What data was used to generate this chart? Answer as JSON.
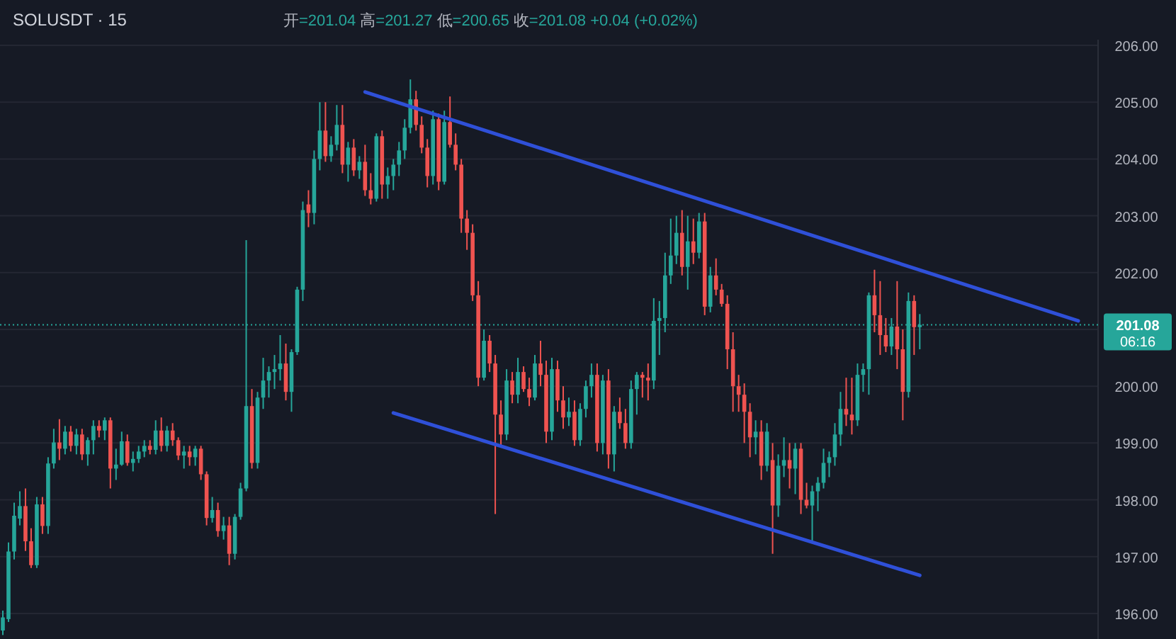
{
  "chart_data": {
    "type": "candlestick",
    "title": "SOLUSDT · 15",
    "subtitle": "开=201.04 高=201.27 低=200.65 收=201.08 +0.04 (+0.02%)",
    "categories": [
      null,
      null,
      null,
      null,
      null,
      null,
      null,
      null,
      null,
      null,
      null,
      null,
      null,
      null,
      null,
      null,
      null,
      null,
      null,
      null,
      null,
      null,
      null,
      null,
      null,
      null,
      null,
      null,
      null,
      null,
      null,
      null,
      null,
      null,
      null,
      null,
      null,
      null,
      null,
      null,
      null,
      null,
      null,
      null,
      null,
      null,
      null,
      null,
      null,
      null,
      null,
      null,
      null,
      null,
      null,
      null,
      null,
      null,
      null,
      null,
      null,
      null,
      null,
      null,
      null,
      null,
      null,
      null,
      null,
      null,
      null,
      null,
      null,
      null,
      null,
      null,
      null,
      null,
      null,
      null,
      null,
      null,
      null,
      null,
      null,
      null,
      null,
      null,
      null,
      null,
      null,
      null,
      null,
      null,
      null,
      null,
      null,
      null,
      null,
      null,
      null,
      null,
      null,
      null,
      null,
      null,
      null,
      null,
      null,
      null,
      null,
      null,
      null,
      null,
      null,
      null,
      null,
      null,
      null,
      null,
      null,
      null,
      null,
      null,
      null,
      null,
      null,
      null,
      null,
      null,
      null,
      null,
      null,
      null,
      null,
      null,
      null,
      null,
      null,
      null,
      null,
      null,
      null,
      null,
      null,
      null,
      null,
      null,
      null,
      null,
      null,
      null,
      null,
      null,
      null,
      null,
      null,
      null,
      null,
      null,
      null,
      null,
      null,
      null,
      null,
      null,
      null,
      null,
      null,
      null,
      null,
      null,
      null,
      null,
      null,
      null,
      null,
      null,
      null,
      null,
      null,
      null,
      null,
      null,
      null,
      null,
      null,
      null,
      null,
      null,
      null,
      null,
      null,
      null
    ],
    "ohlc": [
      [
        195.7,
        196.05,
        195.62,
        195.93
      ],
      [
        195.9,
        197.25,
        195.85,
        197.09
      ],
      [
        197.09,
        197.95,
        196.95,
        197.72
      ],
      [
        197.67,
        198.15,
        197.55,
        197.89
      ],
      [
        197.89,
        198.2,
        197.1,
        197.27
      ],
      [
        197.27,
        197.5,
        196.8,
        196.85
      ],
      [
        196.85,
        198.05,
        196.8,
        197.92
      ],
      [
        197.92,
        198.05,
        197.4,
        197.54
      ],
      [
        197.54,
        198.75,
        197.4,
        198.64
      ],
      [
        198.64,
        199.25,
        198.55,
        199.01
      ],
      [
        199.01,
        199.42,
        198.7,
        198.9
      ],
      [
        198.9,
        199.3,
        198.8,
        199.2
      ],
      [
        199.2,
        199.3,
        198.85,
        198.95
      ],
      [
        198.95,
        199.25,
        198.8,
        199.15
      ],
      [
        199.15,
        199.25,
        198.7,
        198.8
      ],
      [
        198.8,
        199.1,
        198.6,
        199.05
      ],
      [
        199.05,
        199.4,
        198.8,
        199.3
      ],
      [
        199.3,
        199.4,
        199.1,
        199.22
      ],
      [
        199.22,
        199.45,
        199.05,
        199.4
      ],
      [
        199.4,
        199.45,
        198.2,
        198.55
      ],
      [
        198.55,
        198.9,
        198.35,
        198.62
      ],
      [
        198.62,
        199.2,
        198.6,
        199.03
      ],
      [
        199.03,
        199.15,
        198.6,
        198.65
      ],
      [
        198.65,
        198.85,
        198.5,
        198.72
      ],
      [
        198.72,
        198.95,
        198.65,
        198.85
      ],
      [
        198.85,
        199.05,
        198.75,
        198.95
      ],
      [
        198.95,
        199.05,
        198.8,
        198.88
      ],
      [
        198.88,
        199.4,
        198.8,
        199.22
      ],
      [
        199.22,
        199.45,
        198.85,
        198.95
      ],
      [
        198.95,
        199.3,
        198.85,
        199.22
      ],
      [
        199.22,
        199.35,
        198.95,
        199.05
      ],
      [
        199.05,
        199.1,
        198.7,
        198.78
      ],
      [
        198.78,
        198.95,
        198.55,
        198.85
      ],
      [
        198.85,
        198.95,
        198.6,
        198.75
      ],
      [
        198.75,
        198.95,
        198.6,
        198.9
      ],
      [
        198.9,
        198.95,
        198.35,
        198.45
      ],
      [
        198.45,
        198.5,
        197.55,
        197.68
      ],
      [
        197.68,
        198.05,
        197.6,
        197.82
      ],
      [
        197.82,
        197.95,
        197.35,
        197.45
      ],
      [
        197.45,
        197.7,
        197.3,
        197.55
      ],
      [
        197.55,
        197.7,
        196.85,
        197.05
      ],
      [
        197.05,
        197.75,
        196.95,
        197.7
      ],
      [
        197.7,
        198.3,
        197.65,
        198.2
      ],
      [
        198.2,
        202.57,
        198.15,
        199.65
      ],
      [
        199.65,
        199.95,
        198.55,
        198.65
      ],
      [
        198.65,
        199.9,
        198.55,
        199.8
      ],
      [
        199.8,
        200.5,
        199.6,
        200.1
      ],
      [
        200.1,
        200.35,
        199.8,
        200.25
      ],
      [
        200.25,
        200.55,
        199.95,
        200.3
      ],
      [
        200.3,
        200.9,
        200.1,
        200.4
      ],
      [
        200.4,
        200.75,
        199.75,
        199.9
      ],
      [
        199.9,
        200.65,
        199.55,
        200.6
      ],
      [
        200.6,
        201.75,
        200.55,
        201.7
      ],
      [
        201.7,
        203.25,
        201.5,
        203.1
      ],
      [
        203.2,
        203.45,
        202.8,
        203.05
      ],
      [
        203.05,
        204.15,
        202.85,
        204.0
      ],
      [
        204.0,
        205.0,
        203.8,
        204.5
      ],
      [
        204.5,
        205.0,
        203.95,
        204.05
      ],
      [
        204.05,
        204.4,
        203.95,
        204.25
      ],
      [
        204.25,
        204.95,
        204.15,
        204.6
      ],
      [
        204.6,
        204.95,
        203.75,
        203.9
      ],
      [
        203.9,
        204.3,
        203.6,
        204.2
      ],
      [
        204.2,
        204.35,
        203.7,
        203.8
      ],
      [
        203.8,
        204.05,
        203.65,
        203.95
      ],
      [
        203.95,
        204.25,
        203.35,
        203.45
      ],
      [
        203.45,
        203.75,
        203.2,
        203.3
      ],
      [
        203.3,
        204.45,
        203.25,
        204.4
      ],
      [
        204.4,
        204.5,
        203.3,
        203.55
      ],
      [
        203.55,
        203.85,
        203.3,
        203.7
      ],
      [
        203.7,
        204.0,
        203.45,
        203.9
      ],
      [
        203.9,
        204.3,
        203.7,
        204.15
      ],
      [
        204.15,
        204.7,
        204.0,
        204.55
      ],
      [
        204.55,
        205.4,
        204.45,
        205.05
      ],
      [
        205.05,
        205.2,
        204.5,
        204.6
      ],
      [
        204.6,
        204.75,
        204.1,
        204.2
      ],
      [
        204.2,
        204.35,
        203.5,
        203.7
      ],
      [
        203.7,
        204.85,
        203.55,
        204.7
      ],
      [
        204.7,
        204.8,
        203.45,
        203.6
      ],
      [
        203.6,
        204.85,
        203.55,
        204.65
      ],
      [
        204.65,
        205.1,
        204.2,
        204.25
      ],
      [
        204.25,
        204.45,
        203.8,
        203.9
      ],
      [
        203.9,
        204.0,
        202.7,
        202.95
      ],
      [
        202.95,
        203.1,
        202.4,
        202.7
      ],
      [
        202.7,
        202.85,
        201.5,
        201.6
      ],
      [
        201.6,
        201.85,
        200.0,
        200.15
      ],
      [
        200.15,
        201.0,
        200.1,
        200.8
      ],
      [
        200.8,
        200.9,
        200.25,
        200.4
      ],
      [
        200.4,
        200.55,
        197.75,
        199.5
      ],
      [
        199.5,
        199.75,
        198.95,
        199.15
      ],
      [
        199.15,
        200.3,
        199.05,
        200.1
      ],
      [
        200.1,
        200.25,
        199.7,
        199.85
      ],
      [
        199.85,
        200.5,
        199.7,
        200.25
      ],
      [
        200.25,
        200.35,
        199.9,
        199.95
      ],
      [
        199.95,
        200.15,
        199.65,
        199.8
      ],
      [
        199.8,
        200.55,
        199.75,
        200.4
      ],
      [
        200.4,
        200.8,
        200.0,
        200.2
      ],
      [
        200.2,
        200.45,
        199.0,
        199.2
      ],
      [
        199.2,
        200.5,
        199.05,
        200.3
      ],
      [
        200.3,
        200.45,
        199.55,
        199.75
      ],
      [
        199.75,
        200.0,
        199.25,
        199.45
      ],
      [
        199.45,
        199.8,
        199.3,
        199.55
      ],
      [
        199.55,
        199.75,
        198.95,
        199.05
      ],
      [
        199.05,
        199.7,
        198.95,
        199.6
      ],
      [
        199.6,
        200.1,
        199.45,
        200.0
      ],
      [
        200.0,
        200.4,
        199.8,
        200.2
      ],
      [
        200.2,
        200.4,
        198.85,
        199.0
      ],
      [
        199.0,
        200.2,
        198.8,
        200.1
      ],
      [
        200.1,
        200.3,
        198.55,
        198.8
      ],
      [
        198.8,
        199.65,
        198.5,
        199.55
      ],
      [
        199.55,
        199.8,
        199.25,
        199.35
      ],
      [
        199.35,
        199.6,
        198.9,
        199.0
      ],
      [
        199.0,
        200.1,
        198.9,
        199.95
      ],
      [
        199.95,
        200.25,
        199.5,
        200.2
      ],
      [
        200.2,
        200.25,
        199.8,
        200.15
      ],
      [
        200.15,
        200.4,
        199.75,
        200.1
      ],
      [
        200.1,
        201.55,
        199.95,
        201.15
      ],
      [
        201.15,
        201.5,
        200.55,
        201.2
      ],
      [
        201.2,
        202.35,
        200.95,
        201.95
      ],
      [
        201.95,
        202.95,
        201.8,
        202.3
      ],
      [
        202.3,
        203.0,
        202.15,
        202.7
      ],
      [
        202.7,
        203.1,
        201.95,
        202.1
      ],
      [
        202.1,
        203.0,
        201.7,
        202.55
      ],
      [
        202.55,
        202.95,
        202.15,
        202.35
      ],
      [
        202.35,
        203.05,
        202.25,
        202.9
      ],
      [
        202.9,
        203.05,
        201.25,
        201.4
      ],
      [
        201.4,
        202.1,
        201.3,
        201.95
      ],
      [
        201.95,
        202.25,
        201.6,
        201.7
      ],
      [
        201.7,
        201.8,
        201.4,
        201.45
      ],
      [
        201.45,
        201.6,
        200.3,
        200.65
      ],
      [
        200.65,
        200.95,
        199.55,
        200.0
      ],
      [
        200.0,
        200.2,
        199.55,
        199.85
      ],
      [
        199.85,
        200.05,
        199.0,
        199.55
      ],
      [
        199.55,
        199.7,
        198.75,
        199.1
      ],
      [
        199.1,
        199.4,
        198.8,
        199.2
      ],
      [
        199.2,
        199.4,
        198.35,
        198.6
      ],
      [
        198.6,
        199.35,
        198.5,
        199.2
      ],
      [
        198.7,
        199.0,
        197.05,
        197.9
      ],
      [
        197.9,
        198.8,
        197.7,
        198.6
      ],
      [
        198.6,
        199.1,
        198.4,
        198.7
      ],
      [
        198.7,
        199.0,
        198.2,
        198.55
      ],
      [
        198.55,
        199.0,
        198.1,
        198.9
      ],
      [
        198.9,
        199.0,
        197.75,
        198.0
      ],
      [
        198.0,
        198.3,
        197.85,
        197.9
      ],
      [
        197.9,
        198.25,
        197.27,
        198.15
      ],
      [
        198.15,
        198.4,
        197.8,
        198.3
      ],
      [
        198.3,
        198.9,
        198.2,
        198.65
      ],
      [
        198.65,
        198.85,
        198.4,
        198.75
      ],
      [
        198.75,
        199.35,
        198.6,
        199.15
      ],
      [
        199.15,
        199.9,
        198.95,
        199.6
      ],
      [
        199.6,
        200.15,
        199.3,
        199.5
      ],
      [
        199.5,
        200.15,
        199.15,
        199.4
      ],
      [
        199.4,
        200.4,
        199.3,
        200.2
      ],
      [
        200.2,
        200.4,
        199.9,
        200.3
      ],
      [
        200.3,
        201.65,
        199.85,
        201.6
      ],
      [
        201.6,
        202.05,
        200.95,
        201.25
      ],
      [
        201.25,
        201.85,
        200.55,
        200.9
      ],
      [
        200.9,
        201.2,
        200.6,
        200.7
      ],
      [
        200.7,
        201.2,
        200.55,
        201.05
      ],
      [
        201.05,
        201.85,
        200.3,
        200.65
      ],
      [
        200.65,
        201.0,
        199.4,
        199.9
      ],
      [
        199.9,
        201.65,
        199.8,
        201.5
      ],
      [
        201.5,
        201.6,
        200.55,
        201.04
      ],
      [
        201.04,
        201.27,
        200.65,
        201.08
      ],
      null,
      null,
      null,
      null,
      null,
      null,
      null,
      null,
      null,
      null,
      null,
      null,
      null,
      null,
      null,
      null,
      null,
      null,
      null,
      null,
      null,
      null,
      null,
      null,
      null,
      null,
      null,
      null,
      null,
      null,
      null
    ],
    "series": [
      {
        "type": "line",
        "color": "#2f50d8",
        "values": [
          null,
          null,
          null,
          null,
          null,
          null,
          null,
          null,
          null,
          null,
          null,
          null,
          null,
          null,
          null,
          null,
          null,
          null,
          null,
          null,
          null,
          null,
          null,
          null,
          null,
          null,
          null,
          null,
          null,
          null,
          null,
          null,
          null,
          null,
          null,
          null,
          null,
          null,
          null,
          null,
          null,
          null,
          null,
          null,
          null,
          null,
          null,
          null,
          null,
          null,
          null,
          null,
          null,
          null,
          null,
          null,
          null,
          null,
          null,
          null,
          null,
          null,
          null,
          null,
          205.18,
          null,
          null,
          null,
          null,
          null,
          null,
          null,
          null,
          null,
          null,
          null,
          null,
          null,
          null,
          null,
          null,
          null,
          null,
          null,
          null,
          null,
          null,
          null,
          null,
          null,
          null,
          null,
          null,
          null,
          null,
          null,
          null,
          null,
          null,
          null,
          null,
          null,
          null,
          null,
          null,
          null,
          null,
          null,
          null,
          null,
          null,
          null,
          null,
          null,
          null,
          null,
          null,
          null,
          null,
          null,
          null,
          null,
          null,
          null,
          null,
          null,
          null,
          null,
          null,
          null,
          null,
          null,
          null,
          null,
          null,
          null,
          null,
          null,
          null,
          null,
          null,
          null,
          null,
          null,
          null,
          null,
          null,
          null,
          null,
          null,
          null,
          null,
          null,
          null,
          null,
          null,
          null,
          null,
          null,
          null,
          null,
          null,
          null,
          null,
          null,
          null,
          null,
          null,
          null,
          null,
          null,
          null,
          null,
          null,
          null,
          null,
          null,
          null,
          null,
          null,
          null,
          null,
          null,
          null,
          null,
          null,
          null,
          null,
          null,
          null,
          201.15,
          null,
          null,
          null
        ]
      },
      {
        "type": "line",
        "color": "#2f50d8",
        "values": [
          null,
          null,
          null,
          null,
          null,
          null,
          null,
          null,
          null,
          null,
          null,
          null,
          null,
          null,
          null,
          null,
          null,
          null,
          null,
          null,
          null,
          null,
          null,
          null,
          null,
          null,
          null,
          null,
          null,
          null,
          null,
          null,
          null,
          null,
          null,
          null,
          null,
          null,
          null,
          null,
          null,
          null,
          null,
          null,
          null,
          null,
          null,
          null,
          null,
          null,
          null,
          null,
          null,
          null,
          null,
          null,
          null,
          null,
          null,
          null,
          null,
          null,
          null,
          null,
          null,
          null,
          null,
          null,
          null,
          199.53,
          null,
          null,
          null,
          null,
          null,
          null,
          null,
          null,
          null,
          null,
          null,
          null,
          null,
          null,
          null,
          null,
          null,
          null,
          null,
          null,
          null,
          null,
          null,
          null,
          null,
          null,
          null,
          null,
          null,
          null,
          null,
          null,
          null,
          null,
          null,
          null,
          null,
          null,
          null,
          null,
          null,
          null,
          null,
          null,
          null,
          null,
          null,
          null,
          null,
          null,
          null,
          null,
          null,
          null,
          null,
          null,
          null,
          null,
          null,
          null,
          null,
          null,
          null,
          null,
          null,
          null,
          null,
          null,
          null,
          null,
          null,
          null,
          null,
          null,
          null,
          null,
          null,
          null,
          null,
          null,
          null,
          null,
          null,
          null,
          null,
          null,
          null,
          null,
          null,
          null,
          null,
          null,
          196.67,
          null,
          null,
          null,
          null,
          null,
          null,
          null,
          null,
          null,
          null,
          null,
          null,
          null,
          null,
          null,
          null,
          null,
          null,
          null,
          null,
          null,
          null,
          null,
          null,
          null,
          null,
          null,
          null,
          null,
          null,
          null
        ]
      }
    ],
    "ylim": [
      195.55,
      206.1
    ],
    "yticks": [
      {
        "value": 196,
        "label": "196.00"
      },
      {
        "value": 197,
        "label": "197.00"
      },
      {
        "value": 198,
        "label": "198.00"
      },
      {
        "value": 199,
        "label": "199.00"
      },
      {
        "value": 200,
        "label": "200.00"
      },
      {
        "value": 201,
        "label": null
      },
      {
        "value": 202,
        "label": "202.00"
      },
      {
        "value": 203,
        "label": "203.00"
      },
      {
        "value": 204,
        "label": "204.00"
      },
      {
        "value": 205,
        "label": "205.00"
      },
      {
        "value": 206,
        "label": "206.00"
      }
    ],
    "grid": "y",
    "ref_lines": [
      {
        "axis": "y",
        "value": 201.08,
        "label": "201.08",
        "color": "#26a69a",
        "line_style": "dotted"
      }
    ],
    "annotations": [
      "06:16"
    ]
  }
}
